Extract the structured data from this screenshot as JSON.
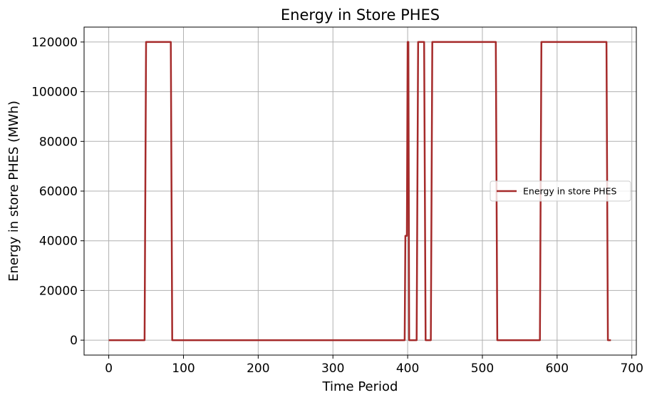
{
  "chart_data": {
    "type": "line",
    "title": "Energy in Store PHES",
    "xlabel": "Time Period",
    "ylabel": "Energy in store PHES (MWh)",
    "xlim": [
      -33,
      706
    ],
    "ylim": [
      -6000,
      126000
    ],
    "xticks": [
      0,
      100,
      200,
      300,
      400,
      500,
      600,
      700
    ],
    "yticks": [
      0,
      20000,
      40000,
      60000,
      80000,
      100000,
      120000
    ],
    "grid": true,
    "legend": {
      "location": "center-right"
    },
    "series": [
      {
        "name": "Energy in store PHES",
        "color": "#a52a2a",
        "x": [
          0,
          48,
          50,
          83,
          85,
          396,
          397,
          399,
          400,
          401,
          402,
          404,
          412,
          414,
          422,
          424,
          431,
          433,
          518,
          520,
          577,
          579,
          666,
          668,
          672
        ],
        "y": [
          0,
          0,
          120000,
          120000,
          0,
          0,
          42000,
          42000,
          120000,
          120000,
          0,
          0,
          0,
          120000,
          120000,
          0,
          0,
          120000,
          120000,
          0,
          0,
          120000,
          120000,
          0,
          0
        ]
      }
    ]
  }
}
